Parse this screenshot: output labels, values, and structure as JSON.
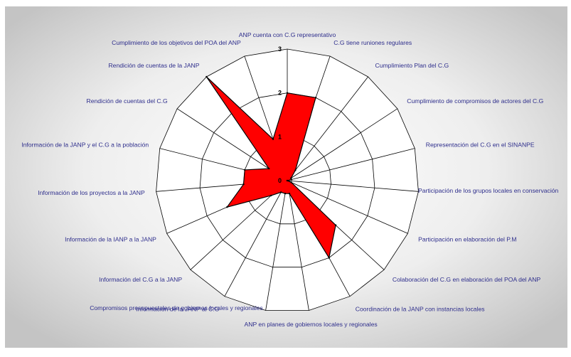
{
  "chart_data": {
    "type": "radar",
    "rmax": 3,
    "tick_values": [
      0,
      1,
      2,
      3
    ],
    "tick_labels": [
      "0",
      "1",
      "2",
      "3"
    ],
    "categories": [
      "ANP cuenta con C.G representativo",
      "C.G tiene runiones regulares",
      "Cumplimiento Plan del C.G",
      "Cumplimiento de compromisos de actores del C.G",
      "Representación del C.G en el SINANPE",
      "Participación de los grupos locales en conservación",
      "Participación en elaboración del P.M",
      "Colaboración del C.G en elaboración del POA del ANP",
      "Coordinación de la JANP con instancias locales",
      "ANP en planes de gobiernos locales y regionales",
      "Compromisos presupuestales de gobiernos locales y regionales",
      "Información de la JANP al C.G",
      "Información del C.G a la JANP",
      "Información de la IANP a la JANP",
      "Información de los proyectos a la JANP",
      "Información de la JANP y el C.G a la población",
      "Rendición de cuentas del C.G",
      "Rendición de cuentas de la JANP",
      "Cumplimiento de los objetivos del POA del ANP"
    ],
    "series": [
      {
        "values": [
          2,
          2,
          0.3,
          0.1,
          0.1,
          0,
          0.1,
          1.5,
          2,
          0.3,
          0.3,
          0.3,
          0.5,
          1.5,
          1,
          1,
          0.5,
          3,
          1
        ],
        "color": "#ff0000"
      }
    ],
    "colors": {
      "fill": "#ff0000",
      "outline": "#000000",
      "grid": "#000000",
      "label": "#2e2e8c",
      "plot_bg": "#ffffff"
    },
    "grid": true,
    "legend": "none"
  }
}
